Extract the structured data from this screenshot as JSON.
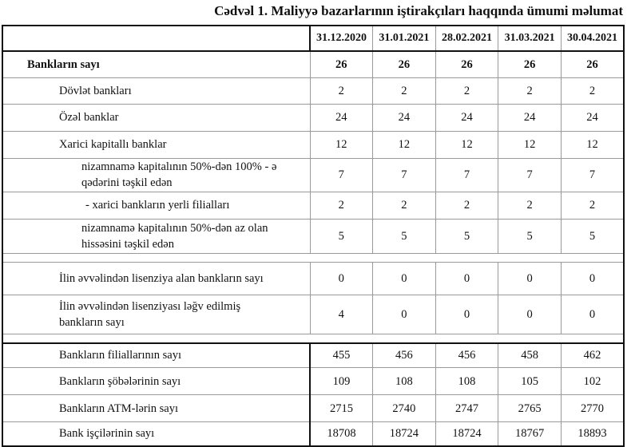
{
  "title": "Cədvəl 1. Maliyyə bazarlarının iştirakçıları haqqında ümumi məlumat",
  "columns": [
    "31.12.2020",
    "31.01.2021",
    "28.02.2021",
    "31.03.2021",
    "30.04.2021"
  ],
  "rows": [
    {
      "label": "Bankların sayı",
      "values": [
        "26",
        "26",
        "26",
        "26",
        "26"
      ]
    },
    {
      "label": "Dövlət bankları",
      "values": [
        "2",
        "2",
        "2",
        "2",
        "2"
      ]
    },
    {
      "label": "Özəl banklar",
      "values": [
        "24",
        "24",
        "24",
        "24",
        "24"
      ]
    },
    {
      "label": "Xarici kapitallı banklar",
      "values": [
        "12",
        "12",
        "12",
        "12",
        "12"
      ]
    },
    {
      "label": "nizamnamə kapitalının 50%-dən 100% - ə qədərini təşkil edən",
      "values": [
        "7",
        "7",
        "7",
        "7",
        "7"
      ]
    },
    {
      "label": "-  xarici bankların yerli filialları",
      "values": [
        "2",
        "2",
        "2",
        "2",
        "2"
      ]
    },
    {
      "label": "nizamnamə kapitalının 50%-dən az olan hissəsini  təşkil edən",
      "values": [
        "5",
        "5",
        "5",
        "5",
        "5"
      ]
    },
    {
      "label": "İlin əvvəlindən lisenziya alan bankların sayı",
      "values": [
        "0",
        "0",
        "0",
        "0",
        "0"
      ]
    },
    {
      "label": "İlin əvvəlindən lisenziyası ləğv edilmiş bankların sayı",
      "values": [
        "4",
        "0",
        "0",
        "0",
        "0"
      ]
    },
    {
      "label": "Bankların filiallarının sayı",
      "values": [
        "455",
        "456",
        "456",
        "458",
        "462"
      ]
    },
    {
      "label": "Bankların şöbələrinin sayı",
      "values": [
        "109",
        "108",
        "108",
        "105",
        "102"
      ]
    },
    {
      "label": "Bankların ATM-lərin sayı",
      "values": [
        "2715",
        "2740",
        "2747",
        "2765",
        "2770"
      ]
    },
    {
      "label": "Bank işçilərinin sayı",
      "values": [
        "18708",
        "18724",
        "18724",
        "18767",
        "18893"
      ]
    }
  ]
}
